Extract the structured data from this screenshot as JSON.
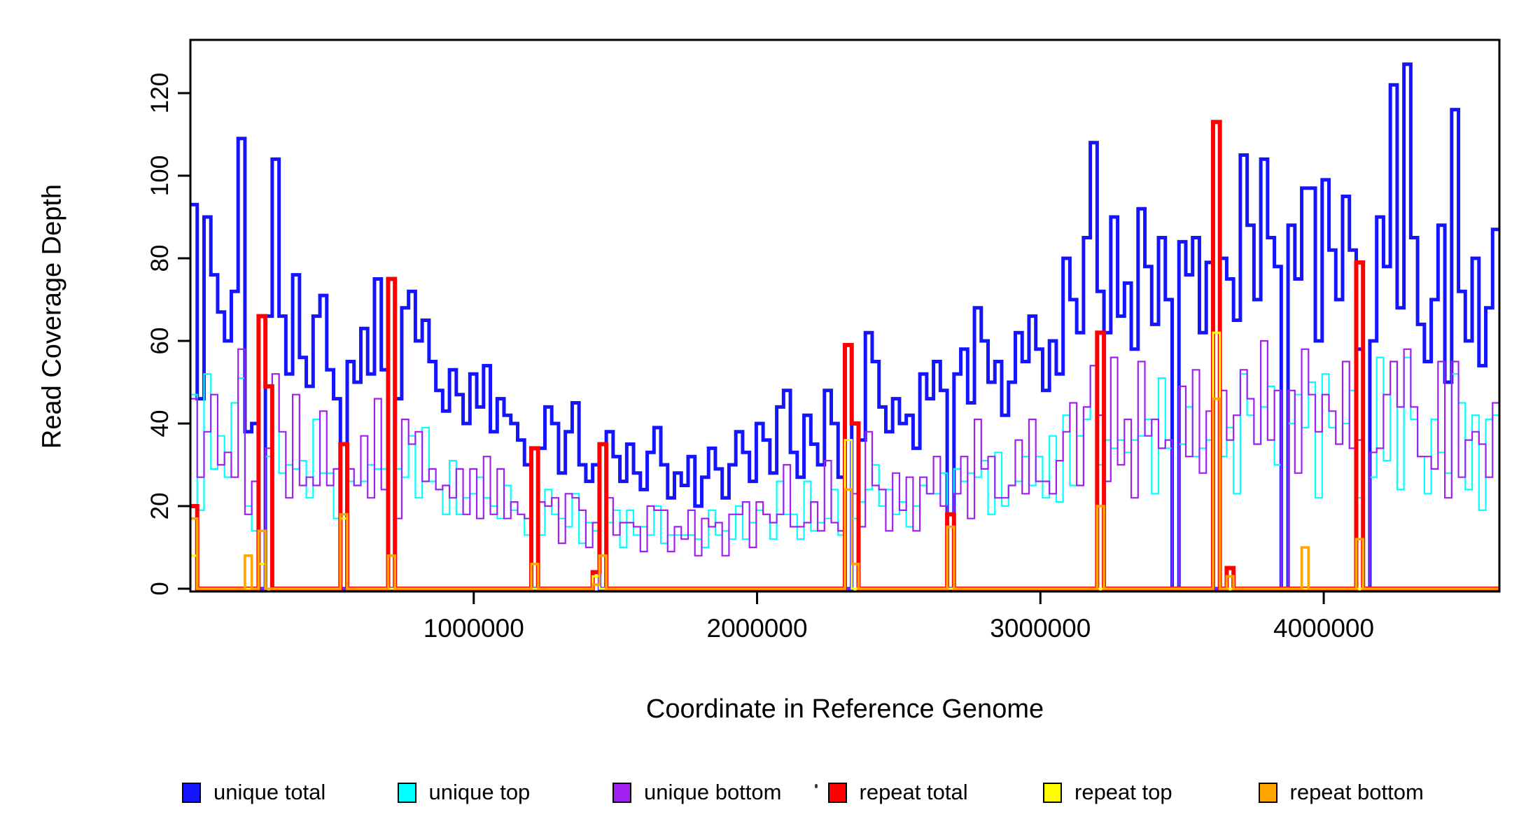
{
  "figure": {
    "background": "#ffffff"
  },
  "axes": {
    "x_title": "Coordinate in Reference Genome",
    "y_title": "Read Coverage Depth",
    "x_tick_labels": [
      "1000000",
      "2000000",
      "3000000",
      "4000000"
    ],
    "y_tick_labels": [
      "0",
      "20",
      "40",
      "60",
      "80",
      "100",
      "120"
    ]
  },
  "legend": {
    "items": [
      {
        "name": "unique-total",
        "label": "unique total",
        "color": "#1414ff"
      },
      {
        "name": "unique-top",
        "label": "unique top",
        "color": "#00ffff"
      },
      {
        "name": "unique-bottom",
        "label": "unique bottom",
        "color": "#a020f0"
      },
      {
        "name": "repeat-total",
        "label": "repeat total",
        "color": "#ff0000"
      },
      {
        "name": "repeat-top",
        "label": "repeat top",
        "color": "#ffff00"
      },
      {
        "name": "repeat-bottom",
        "label": "repeat bottom",
        "color": "#ffa500"
      }
    ]
  },
  "chart_data": {
    "type": "line",
    "subtype": "step",
    "title": "",
    "xlabel": "Coordinate in Reference Genome",
    "ylabel": "Read Coverage Depth",
    "x_domain": [
      0,
      4620000
    ],
    "bin_size": 24062,
    "n_bins": 192,
    "x_ticks": [
      1000000,
      2000000,
      3000000,
      4000000
    ],
    "y_ticks": [
      0,
      20,
      40,
      60,
      80,
      100,
      120
    ],
    "ylim": [
      0,
      133
    ],
    "grid": false,
    "legend_position": "bottom",
    "series": [
      {
        "name": "unique total",
        "color": "#1414ff",
        "line_width": 5,
        "values": [
          93,
          46,
          90,
          76,
          67,
          60,
          72,
          109,
          38,
          40,
          0,
          66,
          104,
          66,
          52,
          76,
          56,
          49,
          66,
          71,
          53,
          46,
          0,
          55,
          50,
          63,
          52,
          75,
          53,
          0,
          46,
          68,
          72,
          60,
          65,
          55,
          48,
          43,
          53,
          47,
          40,
          52,
          44,
          54,
          38,
          46,
          42,
          40,
          36,
          30,
          0,
          34,
          44,
          40,
          28,
          38,
          45,
          30,
          26,
          30,
          0,
          38,
          32,
          26,
          35,
          28,
          24,
          33,
          39,
          30,
          22,
          28,
          25,
          32,
          20,
          27,
          34,
          29,
          22,
          30,
          38,
          33,
          26,
          40,
          36,
          28,
          44,
          48,
          33,
          27,
          42,
          35,
          30,
          48,
          40,
          27,
          0,
          40,
          36,
          62,
          55,
          44,
          38,
          46,
          40,
          42,
          34,
          52,
          46,
          55,
          48,
          0,
          52,
          58,
          45,
          68,
          60,
          50,
          55,
          42,
          50,
          62,
          55,
          66,
          58,
          48,
          60,
          52,
          80,
          70,
          62,
          85,
          108,
          72,
          62,
          90,
          66,
          74,
          58,
          92,
          78,
          64,
          85,
          70,
          0,
          84,
          76,
          85,
          62,
          79,
          0,
          80,
          75,
          65,
          105,
          88,
          70,
          104,
          85,
          78,
          0,
          88,
          75,
          97,
          97,
          60,
          99,
          82,
          70,
          95,
          82,
          58,
          0,
          60,
          90,
          78,
          122,
          68,
          127,
          85,
          64,
          55,
          70,
          88,
          50,
          116,
          72,
          60,
          80,
          54,
          68,
          87
        ]
      },
      {
        "name": "unique top",
        "color": "#00ffff",
        "line_width": 2.2,
        "values": [
          47,
          19,
          52,
          29,
          37,
          27,
          45,
          51,
          20,
          14,
          0,
          32,
          52,
          28,
          30,
          29,
          31,
          22,
          41,
          28,
          28,
          17,
          0,
          26,
          25,
          26,
          30,
          29,
          29,
          0,
          29,
          27,
          37,
          22,
          39,
          26,
          24,
          18,
          31,
          18,
          22,
          23,
          27,
          22,
          20,
          17,
          25,
          19,
          18,
          13,
          0,
          13,
          24,
          18,
          17,
          15,
          23,
          11,
          16,
          14,
          0,
          16,
          19,
          10,
          19,
          13,
          15,
          13,
          20,
          11,
          13,
          13,
          13,
          13,
          12,
          10,
          19,
          13,
          14,
          12,
          20,
          12,
          16,
          19,
          18,
          12,
          26,
          18,
          18,
          12,
          26,
          14,
          16,
          17,
          24,
          13,
          0,
          17,
          21,
          24,
          30,
          20,
          24,
          18,
          21,
          15,
          20,
          25,
          23,
          23,
          28,
          0,
          29,
          26,
          28,
          27,
          31,
          18,
          33,
          20,
          25,
          26,
          32,
          25,
          32,
          22,
          37,
          21,
          42,
          25,
          37,
          41,
          54,
          30,
          36,
          34,
          36,
          33,
          36,
          37,
          41,
          23,
          51,
          34,
          0,
          35,
          44,
          32,
          34,
          36,
          0,
          32,
          39,
          23,
          52,
          42,
          35,
          44,
          49,
          30,
          0,
          40,
          47,
          39,
          50,
          22,
          52,
          39,
          35,
          40,
          48,
          22,
          0,
          27,
          56,
          31,
          55,
          24,
          56,
          41,
          32,
          23,
          41,
          33,
          28,
          52,
          45,
          24,
          42,
          19,
          41,
          42
        ]
      },
      {
        "name": "unique bottom",
        "color": "#a020f0",
        "line_width": 2.2,
        "values": [
          46,
          27,
          38,
          47,
          30,
          33,
          27,
          58,
          18,
          26,
          0,
          34,
          52,
          38,
          22,
          47,
          25,
          27,
          25,
          43,
          25,
          29,
          0,
          29,
          25,
          37,
          22,
          46,
          24,
          0,
          17,
          41,
          35,
          38,
          26,
          29,
          24,
          25,
          22,
          29,
          18,
          29,
          17,
          32,
          18,
          29,
          17,
          21,
          18,
          17,
          0,
          21,
          20,
          22,
          11,
          23,
          22,
          19,
          10,
          16,
          0,
          22,
          13,
          16,
          16,
          15,
          9,
          20,
          19,
          19,
          9,
          15,
          12,
          19,
          8,
          17,
          15,
          16,
          8,
          18,
          18,
          21,
          10,
          21,
          18,
          16,
          18,
          30,
          15,
          15,
          16,
          21,
          14,
          31,
          16,
          14,
          0,
          23,
          15,
          38,
          25,
          24,
          14,
          28,
          19,
          27,
          14,
          27,
          23,
          32,
          20,
          0,
          23,
          32,
          17,
          41,
          29,
          32,
          22,
          22,
          25,
          36,
          23,
          41,
          26,
          26,
          23,
          31,
          38,
          45,
          25,
          44,
          54,
          42,
          26,
          56,
          30,
          41,
          22,
          55,
          37,
          41,
          34,
          36,
          0,
          49,
          32,
          53,
          28,
          43,
          0,
          48,
          36,
          42,
          53,
          46,
          35,
          60,
          36,
          48,
          0,
          48,
          28,
          58,
          47,
          38,
          47,
          43,
          35,
          55,
          34,
          36,
          0,
          33,
          34,
          47,
          55,
          44,
          58,
          44,
          32,
          32,
          29,
          55,
          22,
          55,
          27,
          36,
          38,
          35,
          27,
          45
        ]
      },
      {
        "name": "repeat total",
        "color": "#ff0000",
        "line_width": 6,
        "baseline": 0,
        "spikes": {
          "0": 20,
          "10": 66,
          "11": 49,
          "22": 35,
          "29": 75,
          "50": 34,
          "59": 4,
          "60": 35,
          "96": 59,
          "97": 40,
          "111": 18,
          "133": 62,
          "150": 113,
          "152": 5,
          "171": 79
        }
      },
      {
        "name": "repeat top",
        "color": "#ffff00",
        "line_width": 3,
        "baseline": 0,
        "spikes": {
          "0": 8,
          "10": 6,
          "22": 17,
          "59": 3,
          "96": 36,
          "150": 62
        }
      },
      {
        "name": "repeat bottom",
        "color": "#ffa500",
        "line_width": 3.5,
        "baseline": 0,
        "spikes": {
          "0": 17,
          "8": 8,
          "10": 14,
          "22": 18,
          "29": 8,
          "50": 6,
          "59": 1,
          "60": 8,
          "96": 24,
          "97": 6,
          "111": 15,
          "133": 20,
          "150": 46,
          "152": 3,
          "163": 10,
          "171": 12
        }
      }
    ]
  }
}
